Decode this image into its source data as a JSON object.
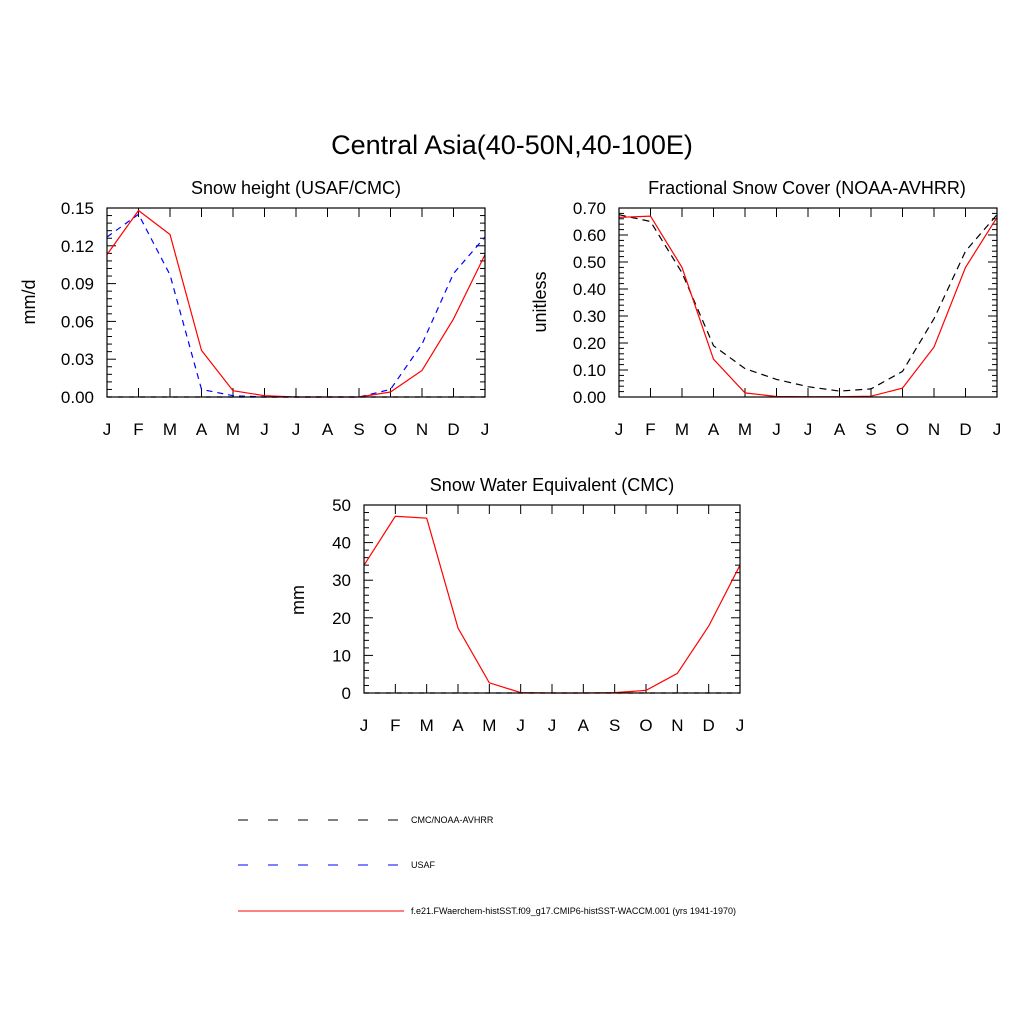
{
  "title": "Central Asia(40-50N,40-100E)",
  "legend": {
    "items": [
      {
        "label": "CMC/NOAA-AVHRR",
        "color": "#000000",
        "dash": "long"
      },
      {
        "label": "USAF",
        "color": "#0000ff",
        "dash": "long"
      },
      {
        "label": "f.e21.FWaerchem-histSST.f09_g17.CMIP6-histSST-WACCM.001 (yrs 1941-1970)",
        "color": "#ff0000",
        "dash": "solid"
      }
    ]
  },
  "chart_data": [
    {
      "type": "line",
      "title": "Snow height (USAF/CMC)",
      "ylabel": "mm/d",
      "xlabel": "",
      "categories": [
        "J",
        "F",
        "M",
        "A",
        "M",
        "J",
        "J",
        "A",
        "S",
        "O",
        "N",
        "D",
        "J"
      ],
      "ylim": [
        0,
        0.15
      ],
      "yticks": [
        "0.00",
        "0.03",
        "0.06",
        "0.09",
        "0.12",
        "0.15"
      ],
      "series": [
        {
          "name": "CMC/NOAA-AVHRR",
          "color": "#000000",
          "dash": "5,6",
          "values": [
            0,
            0,
            0,
            0,
            0,
            0,
            0,
            0,
            0,
            0,
            0,
            0,
            0
          ]
        },
        {
          "name": "USAF",
          "color": "#0000ff",
          "dash": "6,5",
          "values": [
            0.127,
            0.145,
            0.097,
            0.006,
            0.001,
            0,
            0,
            0,
            0,
            0.006,
            0.042,
            0.098,
            0.127
          ]
        },
        {
          "name": "f.e21.FWaerchem-histSST.f09_g17.CMIP6-histSST-WACCM.001 (yrs 1941-1970)",
          "color": "#ff0000",
          "dash": "",
          "values": [
            0.113,
            0.148,
            0.129,
            0.037,
            0.005,
            0.001,
            0,
            0,
            0,
            0.004,
            0.021,
            0.062,
            0.113
          ]
        }
      ]
    },
    {
      "type": "line",
      "title": "Fractional Snow Cover (NOAA-AVHRR)",
      "ylabel": "unitless",
      "xlabel": "",
      "categories": [
        "J",
        "F",
        "M",
        "A",
        "M",
        "J",
        "J",
        "A",
        "S",
        "O",
        "N",
        "D",
        "J"
      ],
      "ylim": [
        0,
        0.7
      ],
      "yticks": [
        "0.00",
        "0.10",
        "0.20",
        "0.30",
        "0.40",
        "0.50",
        "0.60",
        "0.70"
      ],
      "series": [
        {
          "name": "CMC/NOAA-AVHRR",
          "color": "#000000",
          "dash": "7,5",
          "values": [
            0.675,
            0.65,
            0.46,
            0.19,
            0.105,
            0.065,
            0.038,
            0.022,
            0.03,
            0.095,
            0.29,
            0.54,
            0.675
          ]
        },
        {
          "name": "f.e21.FWaerchem-histSST.f09_g17.CMIP6-histSST-WACCM.001 (yrs 1941-1970)",
          "color": "#ff0000",
          "dash": "",
          "values": [
            0.665,
            0.67,
            0.48,
            0.14,
            0.015,
            0.002,
            0.001,
            0.001,
            0.003,
            0.033,
            0.185,
            0.48,
            0.665
          ]
        }
      ]
    },
    {
      "type": "line",
      "title": "Snow Water Equivalent (CMC)",
      "ylabel": "mm",
      "xlabel": "",
      "categories": [
        "J",
        "F",
        "M",
        "A",
        "M",
        "J",
        "J",
        "A",
        "S",
        "O",
        "N",
        "D",
        "J"
      ],
      "ylim": [
        0,
        50
      ],
      "yticks": [
        "0",
        "10",
        "20",
        "30",
        "40",
        "50"
      ],
      "series": [
        {
          "name": "CMC/NOAA-AVHRR",
          "color": "#000000",
          "dash": "5,6",
          "values": [
            0,
            0,
            0,
            0,
            0,
            0,
            0,
            0,
            0,
            0,
            0,
            0,
            0
          ]
        },
        {
          "name": "f.e21.FWaerchem-histSST.f09_g17.CMIP6-histSST-WACCM.001 (yrs 1941-1970)",
          "color": "#ff0000",
          "dash": "",
          "values": [
            34,
            47,
            46.5,
            17.3,
            2.7,
            0.1,
            0,
            0,
            0.1,
            0.7,
            5.2,
            17.8,
            34
          ]
        }
      ]
    }
  ]
}
